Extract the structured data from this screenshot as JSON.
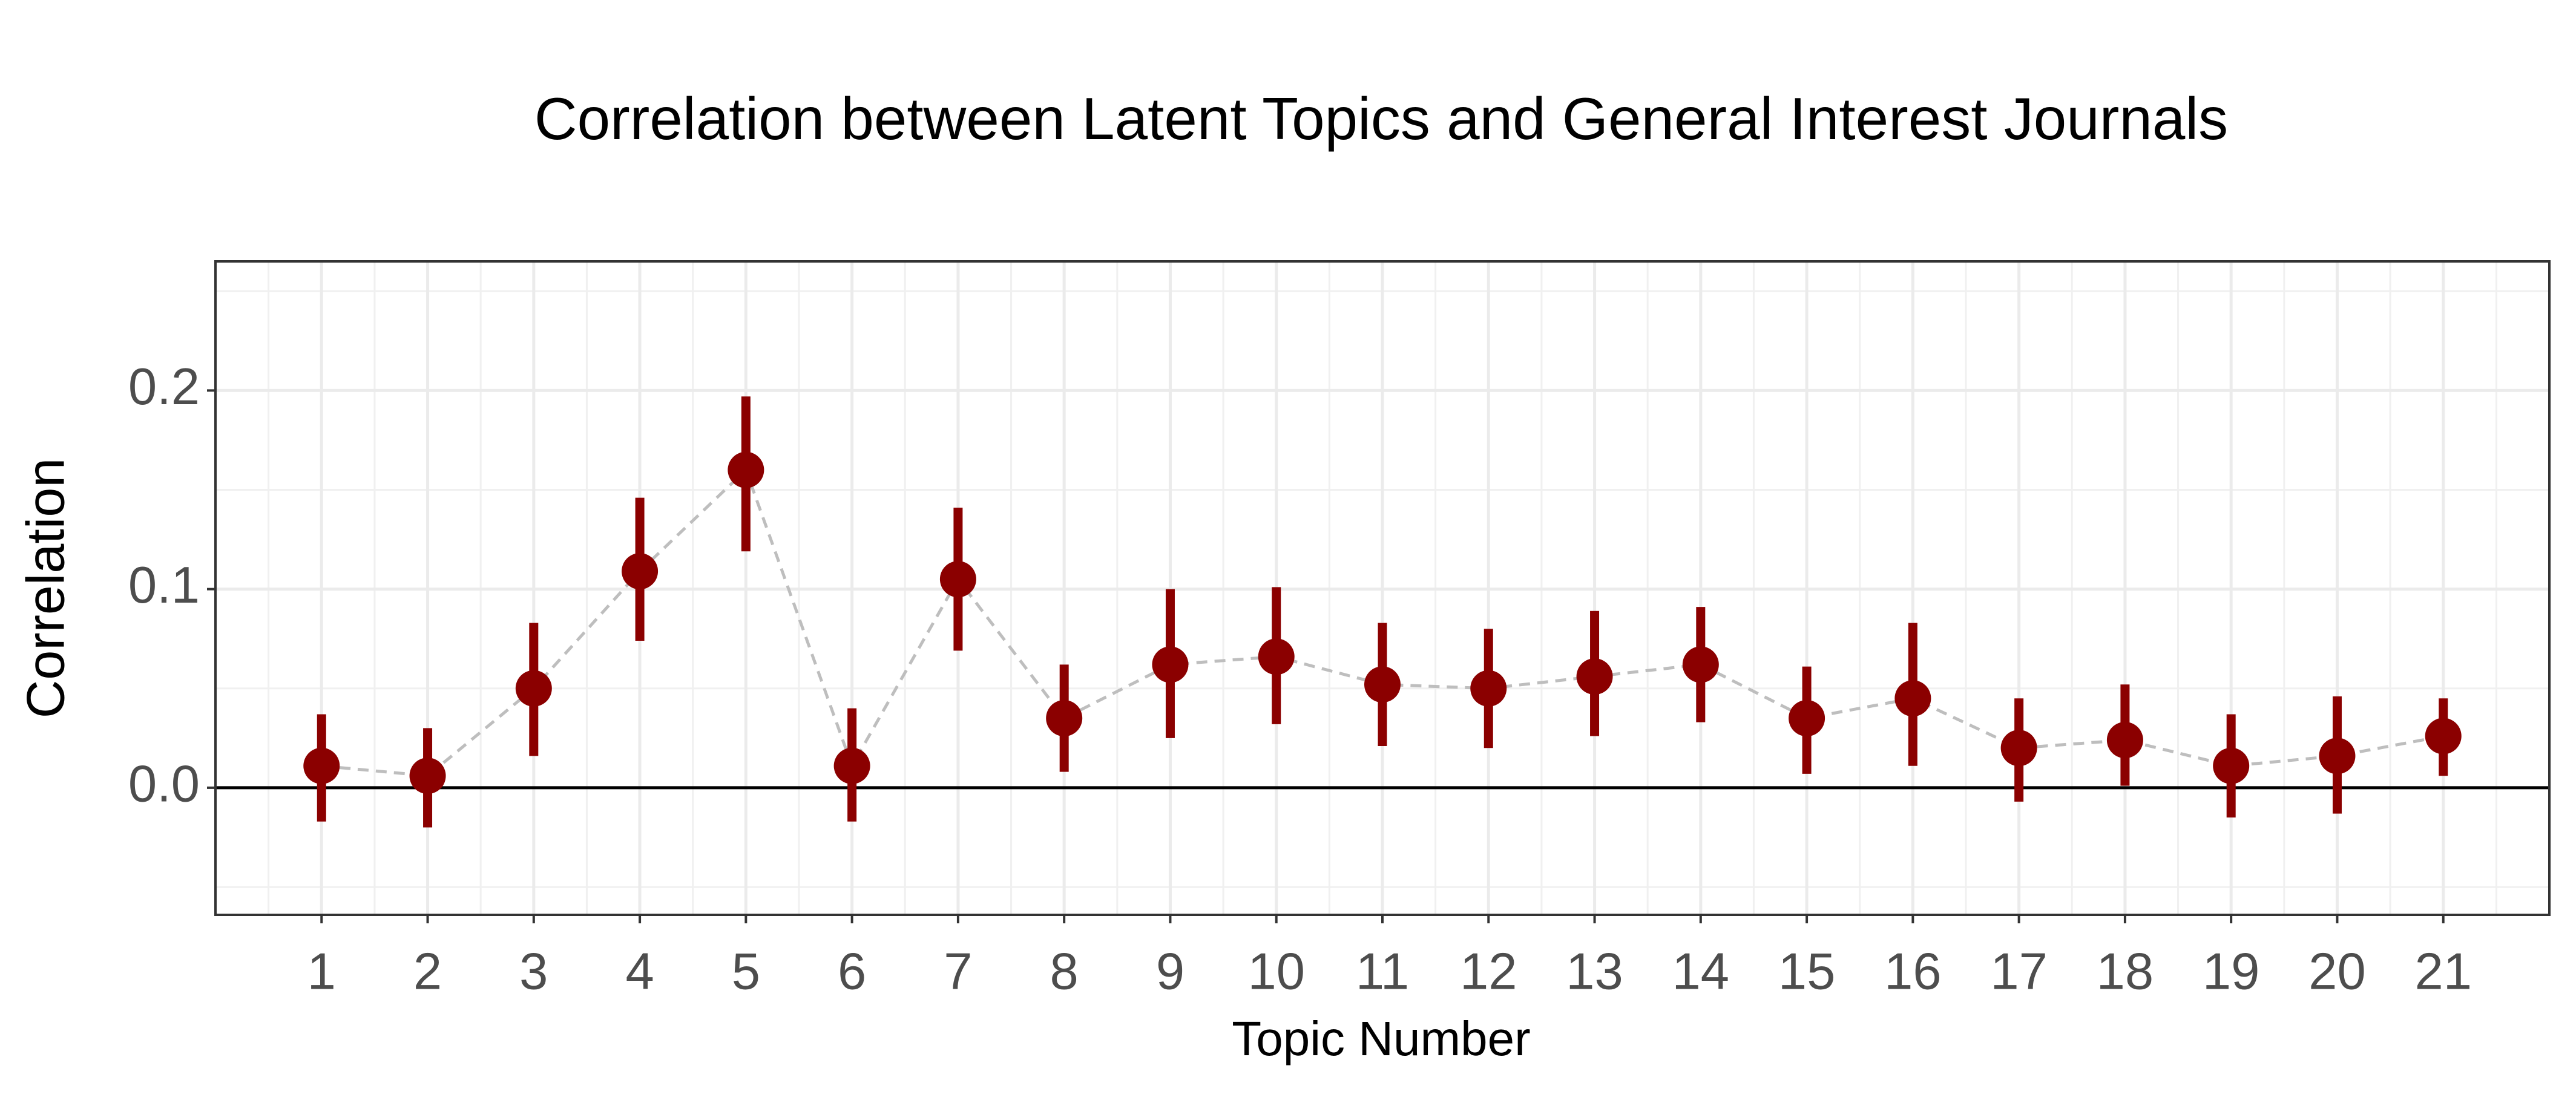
{
  "chart_data": {
    "type": "errorbar",
    "title": "Correlation between Latent Topics and General Interest Journals",
    "x_label": "Topic Number",
    "y_label": "Correlation",
    "x": [
      1,
      2,
      3,
      4,
      5,
      6,
      7,
      8,
      9,
      10,
      11,
      12,
      13,
      14,
      15,
      16,
      17,
      18,
      19,
      20,
      21
    ],
    "values": [
      0.011,
      0.006,
      0.05,
      0.109,
      0.16,
      0.011,
      0.105,
      0.035,
      0.062,
      0.066,
      0.052,
      0.05,
      0.056,
      0.062,
      0.035,
      0.045,
      0.02,
      0.024,
      0.011,
      0.016,
      0.026
    ],
    "lower": [
      -0.017,
      -0.02,
      0.016,
      0.074,
      0.119,
      -0.017,
      0.069,
      0.008,
      0.025,
      0.032,
      0.021,
      0.02,
      0.026,
      0.033,
      0.007,
      0.011,
      -0.007,
      0.001,
      -0.015,
      -0.013,
      0.006
    ],
    "upper": [
      0.037,
      0.03,
      0.083,
      0.146,
      0.197,
      0.04,
      0.141,
      0.062,
      0.1,
      0.101,
      0.083,
      0.08,
      0.089,
      0.091,
      0.061,
      0.083,
      0.045,
      0.052,
      0.037,
      0.046,
      0.045
    ],
    "color": "#8b0000",
    "line_color": "#bebebe",
    "xlim": [
      0,
      22
    ],
    "ylim": [
      -0.064,
      0.265
    ],
    "xticks": [
      1,
      2,
      3,
      4,
      5,
      6,
      7,
      8,
      9,
      10,
      11,
      12,
      13,
      14,
      15,
      16,
      17,
      18,
      19,
      20,
      21
    ],
    "yticks": [
      {
        "value": 0,
        "label": "0.0"
      },
      0.1,
      0.2
    ],
    "hline": 0,
    "grid": true
  }
}
